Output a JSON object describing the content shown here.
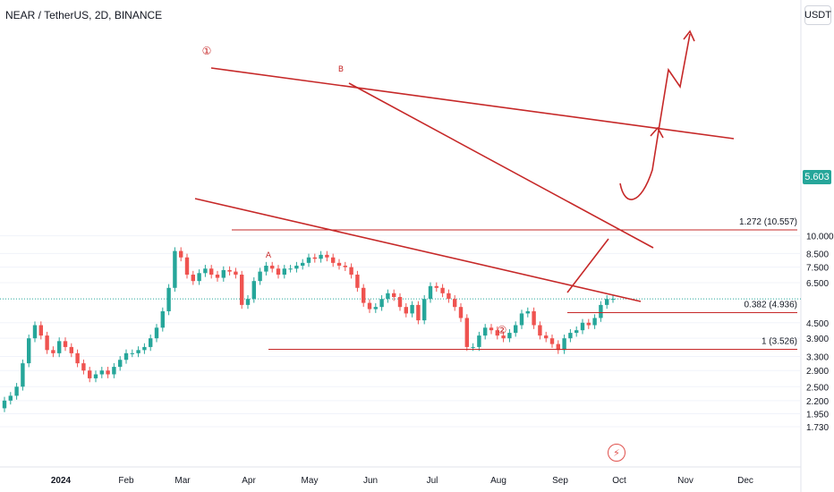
{
  "header": {
    "symbol_title": "NEAR / TetherUS, 2D, BINANCE",
    "unit_label": "USDT",
    "last_price": "5.603"
  },
  "colors": {
    "up": "#26a69a",
    "down": "#ef5350",
    "drawing": "#c62828",
    "price_line": "#26a69a"
  },
  "chart_data": {
    "type": "candlestick",
    "y_axis_ticks": [
      "10.000",
      "8.500",
      "7.500",
      "6.500",
      "5.603",
      "4.500",
      "3.900",
      "3.300",
      "2.900",
      "2.500",
      "2.200",
      "1.950",
      "1.730"
    ],
    "x_axis_ticks": [
      "2024",
      "Feb",
      "Mar",
      "Apr",
      "May",
      "Jun",
      "Jul",
      "Aug",
      "Sep",
      "Oct",
      "Nov",
      "Dec"
    ],
    "fib_levels": [
      {
        "label": "1.272 (10.557)",
        "value": 10.557
      },
      {
        "label": "0.382 (4.936)",
        "value": 4.936
      },
      {
        "label": "1 (3.526)",
        "value": 3.526
      }
    ],
    "wave_labels": [
      "①",
      "B",
      "A",
      "②"
    ],
    "candles_close_approx": [
      2.2,
      2.3,
      2.5,
      3.1,
      3.9,
      4.4,
      4.0,
      3.5,
      3.4,
      3.8,
      3.6,
      3.4,
      3.1,
      2.9,
      2.7,
      2.8,
      2.9,
      2.8,
      3.0,
      3.2,
      3.4,
      3.4,
      3.5,
      3.6,
      3.9,
      4.3,
      5.0,
      6.2,
      8.7,
      8.2,
      7.0,
      6.6,
      7.1,
      7.4,
      7.0,
      6.8,
      7.3,
      7.2,
      7.0,
      5.3,
      5.6,
      6.6,
      7.2,
      7.6,
      7.4,
      7.0,
      7.4,
      7.4,
      7.6,
      7.8,
      8.2,
      8.1,
      8.4,
      8.2,
      7.8,
      7.6,
      7.5,
      7.0,
      6.2,
      5.4,
      5.1,
      5.2,
      5.6,
      5.9,
      5.7,
      5.2,
      4.9,
      5.3,
      4.6,
      5.6,
      6.3,
      6.2,
      5.9,
      5.6,
      5.2,
      4.7,
      3.6,
      3.6,
      4.0,
      4.3,
      4.2,
      4.0,
      3.9,
      4.1,
      4.4,
      4.9,
      5.0,
      4.4,
      4.0,
      3.9,
      3.7,
      3.5,
      3.9,
      4.1,
      4.2,
      4.5,
      4.4,
      4.7,
      5.3,
      5.6,
      5.603
    ]
  }
}
